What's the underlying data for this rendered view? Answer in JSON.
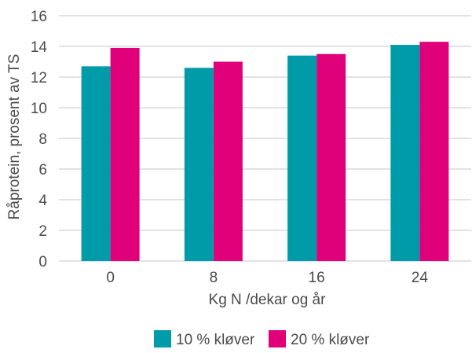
{
  "chart_data": {
    "type": "bar",
    "categories": [
      "0",
      "8",
      "16",
      "24"
    ],
    "series": [
      {
        "name": "10 % kløver",
        "color": "#009ba9",
        "values": [
          12.7,
          12.6,
          13.4,
          14.1
        ]
      },
      {
        "name": "20 % kløver",
        "color": "#e0007a",
        "values": [
          13.9,
          13.0,
          13.5,
          14.3
        ]
      }
    ],
    "xlabel": "Kg N /dekar og år",
    "ylabel": "Råprotein, prosent av TS",
    "ylim": [
      0,
      16
    ],
    "yticks": [
      "0",
      "2",
      "4",
      "6",
      "8",
      "10",
      "12",
      "14",
      "16"
    ],
    "grid": true,
    "legend_position": "bottom"
  }
}
